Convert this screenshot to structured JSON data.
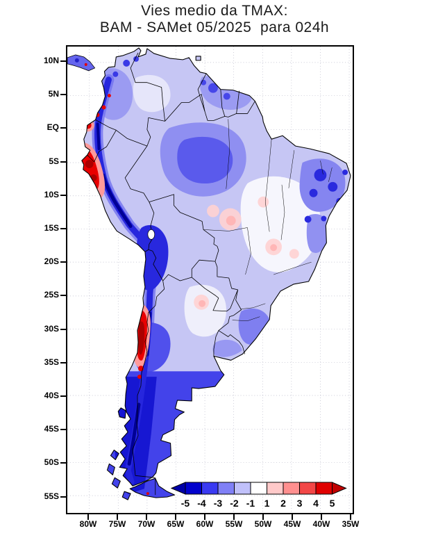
{
  "title": {
    "line1": "Vies medio da TMAX:",
    "line2": "BAM - SAMet 05/2025  para 024h"
  },
  "axes": {
    "y_ticks": [
      "10N",
      "5N",
      "EQ",
      "5S",
      "10S",
      "15S",
      "20S",
      "25S",
      "30S",
      "35S",
      "40S",
      "45S",
      "50S",
      "55S"
    ],
    "x_ticks": [
      "80W",
      "75W",
      "70W",
      "65W",
      "60W",
      "55W",
      "50W",
      "45W",
      "40W",
      "35W"
    ]
  },
  "colorbar": {
    "tick_labels": [
      "-5",
      "-4",
      "-3",
      "-2",
      "-1",
      "1",
      "2",
      "3",
      "4",
      "5"
    ],
    "cell_colors": [
      "#0202cd",
      "#3a3af2",
      "#8080f6",
      "#c0c0fa",
      "#ffffff",
      "#ffc9c9",
      "#ff8f8f",
      "#f34747",
      "#e00000"
    ],
    "arrow_left_color": "#0000a8",
    "arrow_right_color": "#c00000"
  },
  "chart_data": {
    "type": "heatmap",
    "title": "Vies medio da TMAX: BAM - SAMet 05/2025 para 024h",
    "variable": "Mean bias of TMAX, BAM model vs SAMet, month 05/2025, forecast 024h",
    "region": "South America",
    "lat_tick_labels": [
      "10N",
      "5N",
      "EQ",
      "5S",
      "10S",
      "15S",
      "20S",
      "25S",
      "30S",
      "35S",
      "40S",
      "45S",
      "50S",
      "55S"
    ],
    "lon_tick_labels": [
      "80W",
      "75W",
      "70W",
      "65W",
      "60W",
      "55W",
      "50W",
      "45W",
      "40W",
      "35W"
    ],
    "scale_levels": [
      -5,
      -4,
      -3,
      -2,
      -1,
      1,
      2,
      3,
      4,
      5
    ],
    "palette": [
      "#0202cd",
      "#3a3af2",
      "#8080f6",
      "#c0c0fa",
      "#ffffff",
      "#ffc9c9",
      "#ff8f8f",
      "#f34747",
      "#e00000"
    ],
    "legend_position": "bottom-right inside plot",
    "grid": "dotted",
    "features": [
      {
        "area": "Andes cordillera from Colombia to Patagonia",
        "bias": "strong negative, -3 to below -5"
      },
      {
        "area": "Peruvian coast near 4S-9S",
        "bias": "strong positive, above +4"
      },
      {
        "area": "Central Chile near 27S-34S",
        "bias": "strong positive, above +4"
      },
      {
        "area": "Patagonia and southern Argentina",
        "bias": "negative, -2 to -5"
      },
      {
        "area": "Northeast Brazil",
        "bias": "negative patches, -2 to -4"
      },
      {
        "area": "Central and eastern Brazil",
        "bias": "near zero with weak positive patches, -1 to +2"
      },
      {
        "area": "Western and central Amazon",
        "bias": "weak to moderate negative, -1 to -3"
      }
    ]
  }
}
